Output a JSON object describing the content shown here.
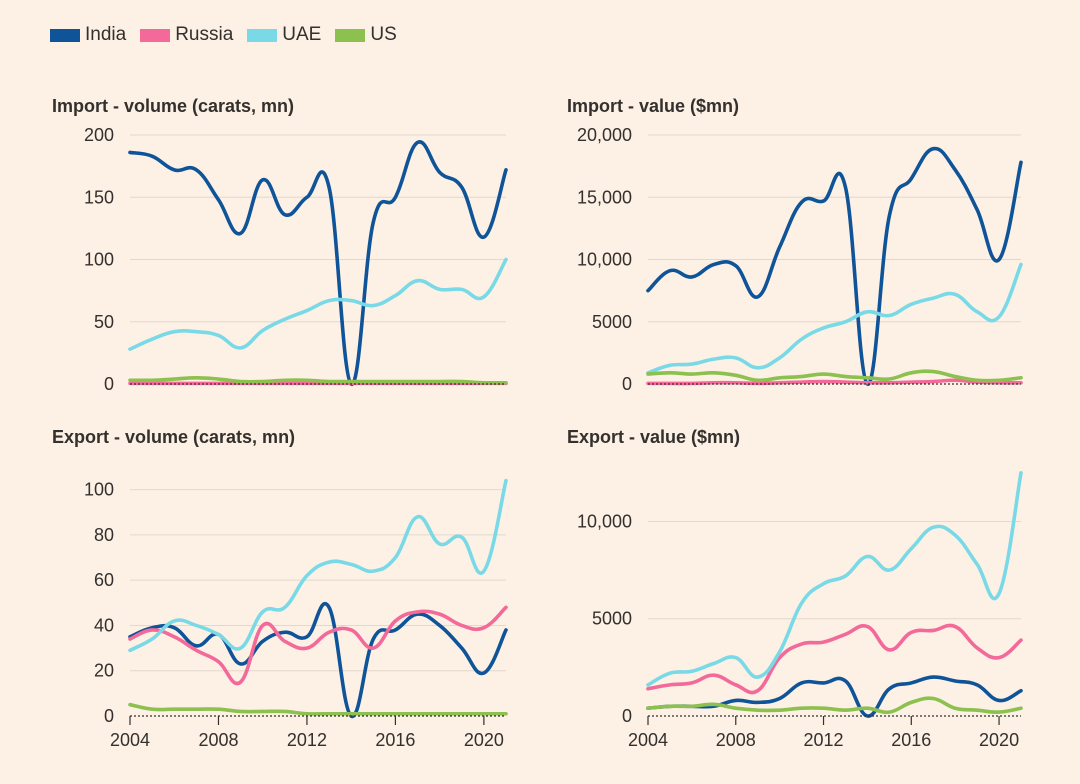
{
  "legend": [
    {
      "name": "India",
      "color": "#0f5499"
    },
    {
      "name": "Russia",
      "color": "#f2699a"
    },
    {
      "name": "UAE",
      "color": "#7ad9e6"
    },
    {
      "name": "US",
      "color": "#8cc04f"
    }
  ],
  "chart_data": [
    {
      "type": "line",
      "title": "Import - volume (carats, mn)",
      "xlabel": "",
      "ylabel": "",
      "x": [
        2004,
        2005,
        2006,
        2007,
        2008,
        2009,
        2010,
        2011,
        2012,
        2013,
        2014,
        2015,
        2016,
        2017,
        2018,
        2019,
        2020,
        2021
      ],
      "xlim": [
        2004,
        2021
      ],
      "xticks": [],
      "ylim": [
        0,
        200
      ],
      "yticks": [
        0,
        50,
        100,
        150,
        200
      ],
      "ytick_labels": [
        "0",
        "50",
        "100",
        "150",
        "200"
      ],
      "series": [
        {
          "name": "India",
          "color": "#0f5499",
          "values": [
            186,
            183,
            172,
            172,
            148,
            121,
            164,
            136,
            150,
            158,
            0,
            130,
            150,
            194,
            170,
            158,
            118,
            172
          ]
        },
        {
          "name": "Russia",
          "color": "#f2699a",
          "values": [
            0.5,
            0.5,
            0.5,
            0.5,
            0.5,
            0.5,
            0.5,
            0.5,
            0.5,
            0.5,
            0.5,
            0.5,
            0.5,
            0.5,
            0.5,
            0.5,
            0.5,
            0.5
          ]
        },
        {
          "name": "UAE",
          "color": "#7ad9e6",
          "values": [
            28,
            36,
            42,
            42,
            39,
            29,
            43,
            52,
            59,
            67,
            67,
            63,
            71,
            83,
            76,
            76,
            70,
            100
          ]
        },
        {
          "name": "US",
          "color": "#8cc04f",
          "values": [
            3,
            3,
            4,
            5,
            4,
            2,
            2,
            3,
            3,
            2,
            2,
            2,
            2,
            2,
            2,
            2,
            1,
            1
          ]
        }
      ]
    },
    {
      "type": "line",
      "title": "Import - value ($mn)",
      "xlabel": "",
      "ylabel": "",
      "x": [
        2004,
        2005,
        2006,
        2007,
        2008,
        2009,
        2010,
        2011,
        2012,
        2013,
        2014,
        2015,
        2016,
        2017,
        2018,
        2019,
        2020,
        2021
      ],
      "xlim": [
        2004,
        2021
      ],
      "xticks": [],
      "ylim": [
        0,
        20000
      ],
      "yticks": [
        0,
        5000,
        10000,
        15000,
        20000
      ],
      "ytick_labels": [
        "0",
        "5000",
        "10,000",
        "15,000",
        "20,000"
      ],
      "series": [
        {
          "name": "India",
          "color": "#0f5499",
          "values": [
            7500,
            9100,
            8600,
            9600,
            9500,
            7000,
            11000,
            14600,
            14700,
            15800,
            0,
            13500,
            16500,
            18900,
            17200,
            14000,
            10000,
            17800
          ]
        },
        {
          "name": "Russia",
          "color": "#f2699a",
          "values": [
            50,
            50,
            50,
            100,
            100,
            50,
            100,
            150,
            200,
            150,
            100,
            100,
            150,
            200,
            300,
            150,
            100,
            100
          ]
        },
        {
          "name": "UAE",
          "color": "#7ad9e6",
          "values": [
            900,
            1500,
            1600,
            2000,
            2100,
            1300,
            2100,
            3600,
            4500,
            5000,
            5800,
            5500,
            6400,
            6900,
            7200,
            5800,
            5400,
            9600
          ]
        },
        {
          "name": "US",
          "color": "#8cc04f",
          "values": [
            800,
            900,
            800,
            900,
            700,
            300,
            500,
            600,
            800,
            600,
            500,
            400,
            900,
            1000,
            600,
            300,
            300,
            500
          ]
        }
      ]
    },
    {
      "type": "line",
      "title": "Export - volume (carats, mn)",
      "xlabel": "",
      "ylabel": "",
      "x": [
        2004,
        2005,
        2006,
        2007,
        2008,
        2009,
        2010,
        2011,
        2012,
        2013,
        2014,
        2015,
        2016,
        2017,
        2018,
        2019,
        2020,
        2021
      ],
      "xlim": [
        2004,
        2021
      ],
      "xticks": [
        2004,
        2008,
        2012,
        2016,
        2020
      ],
      "xtick_labels": [
        "2004",
        "2008",
        "2012",
        "2016",
        "2020"
      ],
      "ylim": [
        0,
        110
      ],
      "yticks": [
        0,
        20,
        40,
        60,
        80,
        100
      ],
      "ytick_labels": [
        "0",
        "20",
        "40",
        "60",
        "80",
        "100"
      ],
      "series": [
        {
          "name": "India",
          "color": "#0f5499",
          "values": [
            35,
            39,
            39,
            31,
            36,
            23,
            33,
            37,
            35,
            48,
            0,
            34,
            38,
            45,
            40,
            30,
            19,
            38
          ]
        },
        {
          "name": "Russia",
          "color": "#f2699a",
          "values": [
            34,
            38,
            35,
            29,
            24,
            15,
            40,
            33,
            30,
            37,
            38,
            30,
            42,
            46,
            45,
            40,
            39,
            48
          ]
        },
        {
          "name": "UAE",
          "color": "#7ad9e6",
          "values": [
            29,
            34,
            42,
            40,
            36,
            30,
            46,
            48,
            62,
            68,
            67,
            64,
            70,
            88,
            76,
            79,
            64,
            104
          ]
        },
        {
          "name": "US",
          "color": "#8cc04f",
          "values": [
            5,
            3,
            3,
            3,
            3,
            2,
            2,
            2,
            1,
            1,
            1,
            1,
            1,
            1,
            1,
            1,
            1,
            1
          ]
        }
      ]
    },
    {
      "type": "line",
      "title": "Export - value ($mn)",
      "xlabel": "",
      "ylabel": "",
      "x": [
        2004,
        2005,
        2006,
        2007,
        2008,
        2009,
        2010,
        2011,
        2012,
        2013,
        2014,
        2015,
        2016,
        2017,
        2018,
        2019,
        2020,
        2021
      ],
      "xlim": [
        2004,
        2021
      ],
      "xticks": [
        2004,
        2008,
        2012,
        2016,
        2020
      ],
      "xtick_labels": [
        "2004",
        "2008",
        "2012",
        "2016",
        "2020"
      ],
      "ylim": [
        0,
        12800
      ],
      "yticks": [
        0,
        5000,
        10000
      ],
      "ytick_labels": [
        "0",
        "5000",
        "10,000"
      ],
      "series": [
        {
          "name": "India",
          "color": "#0f5499",
          "values": [
            400,
            500,
            500,
            500,
            800,
            700,
            900,
            1700,
            1700,
            1800,
            0,
            1400,
            1700,
            2000,
            1800,
            1600,
            800,
            1300
          ]
        },
        {
          "name": "Russia",
          "color": "#f2699a",
          "values": [
            1400,
            1600,
            1700,
            2100,
            1600,
            1300,
            3000,
            3700,
            3800,
            4200,
            4600,
            3400,
            4300,
            4400,
            4600,
            3500,
            3000,
            3900
          ]
        },
        {
          "name": "UAE",
          "color": "#7ad9e6",
          "values": [
            1600,
            2200,
            2300,
            2700,
            3000,
            2000,
            3300,
            5800,
            6800,
            7200,
            8200,
            7500,
            8600,
            9700,
            9300,
            7800,
            6300,
            12500
          ]
        },
        {
          "name": "US",
          "color": "#8cc04f",
          "values": [
            400,
            500,
            500,
            600,
            400,
            300,
            300,
            400,
            400,
            300,
            400,
            200,
            700,
            900,
            400,
            300,
            200,
            400
          ]
        }
      ]
    }
  ]
}
